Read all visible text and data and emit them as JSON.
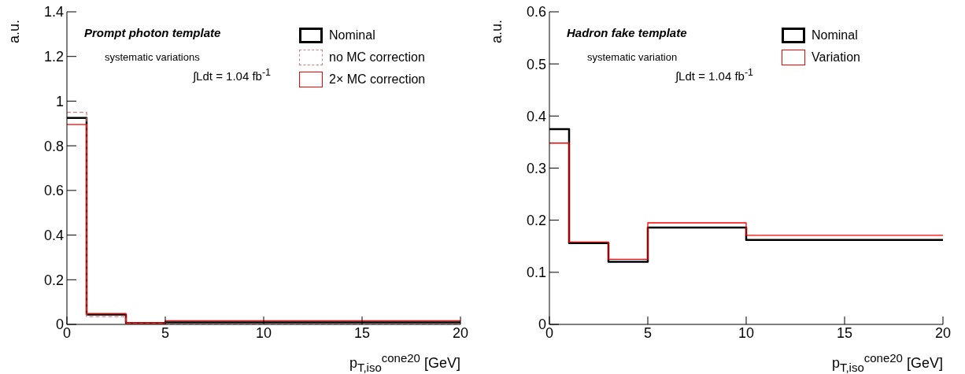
{
  "chart_data": [
    {
      "type": "histogram",
      "title": "Prompt photon template",
      "xlabel": "p$_{T,iso}$$^{cone20}$ [GeV]",
      "ylabel": "a.u.",
      "annotations": [
        "systematic variations",
        "∫Ldt = 1.04 fb$^{-1}$"
      ],
      "bins": [
        0,
        1,
        3,
        5,
        10,
        20
      ],
      "series": [
        {
          "name": "Nominal",
          "color": "#000000",
          "values": [
            0.925,
            0.044,
            0.006,
            0.009,
            0.009
          ]
        },
        {
          "name": "no MC correction",
          "color": "#d08080",
          "line_style": "dashed",
          "values": [
            0.95,
            0.035,
            0.005,
            0.002,
            0.002
          ]
        },
        {
          "name": "2× MC correction",
          "color": "#ff0000",
          "values": [
            0.895,
            0.049,
            0.007,
            0.016,
            0.016
          ]
        }
      ],
      "xlim": [
        0,
        20
      ],
      "xticks": [
        0,
        5,
        10,
        15,
        20
      ],
      "ylim": [
        0,
        1.4
      ],
      "yticks": [
        0,
        0.2,
        0.4,
        0.6,
        0.8,
        1,
        1.2,
        1.4
      ],
      "grid": false,
      "legend": "top right"
    },
    {
      "type": "histogram",
      "title": "Hadron fake template",
      "xlabel": "p$_{T,iso}$$^{cone20}$ [GeV]",
      "ylabel": "a.u.",
      "annotations": [
        "systematic variation",
        "∫Ldt = 1.04 fb$^{-1}$"
      ],
      "bins": [
        0,
        1,
        3,
        5,
        10,
        20
      ],
      "series": [
        {
          "name": "Nominal",
          "color": "#000000",
          "values": [
            0.375,
            0.156,
            0.12,
            0.186,
            0.162
          ]
        },
        {
          "name": "Variation",
          "color": "#ff0000",
          "values": [
            0.348,
            0.158,
            0.125,
            0.195,
            0.171
          ]
        }
      ],
      "xlim": [
        0,
        20
      ],
      "xticks": [
        0,
        5,
        10,
        15,
        20
      ],
      "ylim": [
        0,
        0.6
      ],
      "yticks": [
        0,
        0.1,
        0.2,
        0.3,
        0.4,
        0.5,
        0.6
      ],
      "grid": false,
      "legend": "top right"
    }
  ]
}
